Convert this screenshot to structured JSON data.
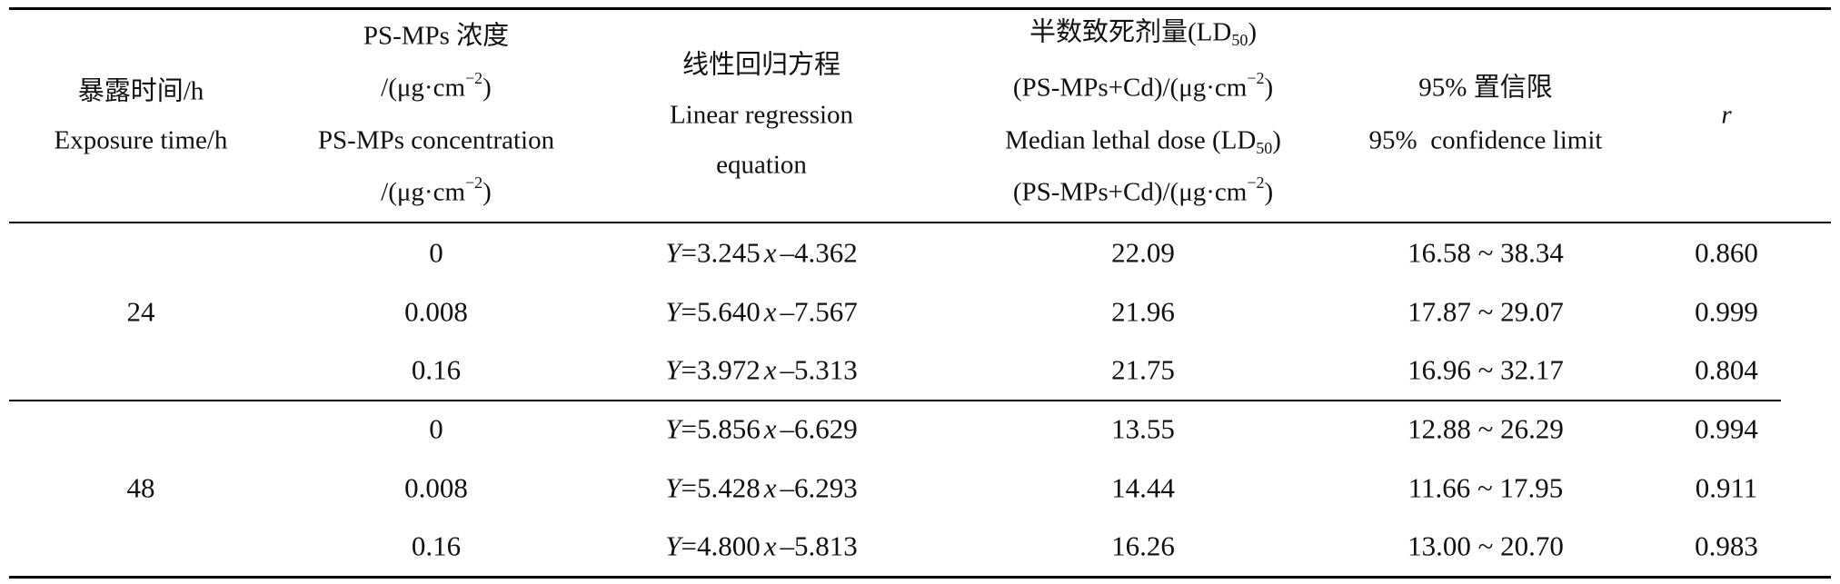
{
  "table": {
    "headers": {
      "exposure_time": {
        "zh": "暴露时间/h",
        "en": "Exposure time/h"
      },
      "concentration": {
        "zh": "PS-MPs 浓度",
        "unit_prefix": "/(μg·cm",
        "unit_exp": "−2",
        "unit_suffix": ")",
        "en": "PS-MPs concentration"
      },
      "equation": {
        "zh": "线性回归方程",
        "en_line1": "Linear regression",
        "en_line2": "equation"
      },
      "ld50": {
        "zh": "半数致死剂量(LD",
        "sub": "50",
        "zh_close": ")",
        "unit_prefix": "(PS-MPs+Cd)/(μg·cm",
        "unit_exp": "−2",
        "unit_suffix": ")",
        "en": "Median lethal dose (LD",
        "en_close": ")"
      },
      "confidence": {
        "zh": "95% 置信限",
        "en": "95%  confidence limit"
      },
      "r": "r"
    },
    "eq_Y": "Y",
    "eq_x": "x",
    "groups": [
      {
        "time": "24",
        "rows": [
          {
            "conc": "0",
            "eq_a": "=3.245",
            "eq_b": "–4.362",
            "ld50": "22.09",
            "ci": "16.58 ~ 38.34",
            "r": "0.860"
          },
          {
            "conc": "0.008",
            "eq_a": "=5.640",
            "eq_b": "–7.567",
            "ld50": "21.96",
            "ci": "17.87 ~ 29.07",
            "r": "0.999"
          },
          {
            "conc": "0.16",
            "eq_a": "=3.972",
            "eq_b": "–5.313",
            "ld50": "21.75",
            "ci": "16.96 ~ 32.17",
            "r": "0.804"
          }
        ]
      },
      {
        "time": "48",
        "rows": [
          {
            "conc": "0",
            "eq_a": "=5.856",
            "eq_b": "–6.629",
            "ld50": "13.55",
            "ci": "12.88 ~ 26.29",
            "r": "0.994"
          },
          {
            "conc": "0.008",
            "eq_a": "=5.428",
            "eq_b": "–6.293",
            "ld50": "14.44",
            "ci": "11.66 ~ 17.95",
            "r": "0.911"
          },
          {
            "conc": "0.16",
            "eq_a": "=4.800",
            "eq_b": "–5.813",
            "ld50": "16.26",
            "ci": "13.00 ~ 20.70",
            "r": "0.983"
          }
        ]
      }
    ]
  }
}
